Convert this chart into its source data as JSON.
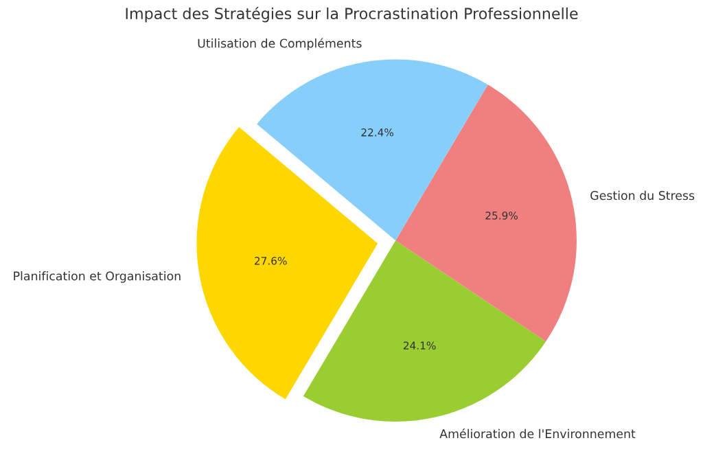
{
  "chart_data": {
    "type": "pie",
    "title": "Impact des Stratégies sur la Procrastination Professionnelle",
    "categories": [
      "Planification et Organisation",
      "Amélioration de l'Environnement",
      "Gestion du Stress",
      "Utilisation de Compléments"
    ],
    "values": [
      27.6,
      24.1,
      25.9,
      22.4
    ],
    "colors": [
      "#ffd700",
      "#9acd32",
      "#f08080",
      "#87cefa"
    ],
    "value_labels": [
      "27.6%",
      "24.1%",
      "25.9%",
      "22.4%"
    ],
    "legend": false
  }
}
